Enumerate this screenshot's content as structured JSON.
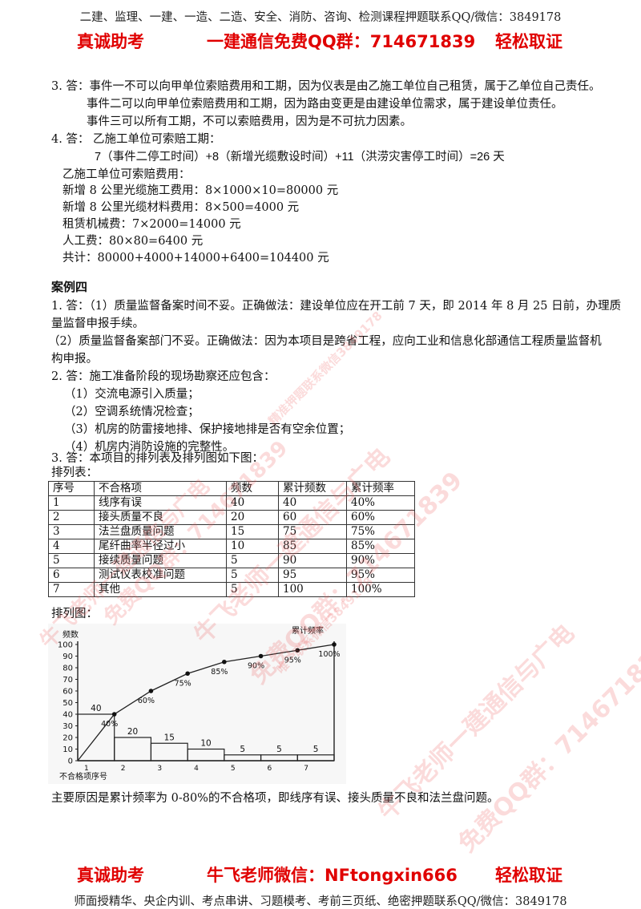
{
  "header": {
    "banner": "二建、监理、一建、一造、二造、安全、消防、咨询、检测课程押题联系QQ/微信：3849178",
    "left_slogan": "真诚助考",
    "center": "一建通信免费QQ群：714671839",
    "right_slogan": "轻松取证"
  },
  "section3": {
    "q3": "3. 答：事件一不可以向甲单位索赔费用和工期，因为仪表是由乙施工单位自己租赁，属于乙单位自己责任。",
    "q3_event2": "事件二可以向甲单位索赔费用和工期，因为路由变更是由建设单位需求，属于建设单位责任。",
    "q3_event3": "事件三可以所有工期，不可以索赔费用，因为是不可抗力因素。",
    "q4": "4. 答： 乙施工单位可索赔工期：",
    "q4_formula": "7（事件二停工时间）+8（新增光缆敷设时间）+11（洪涝灾害停工时间）=26 天",
    "q4_cost_title": "乙施工单位可索赔费用：",
    "q4_cost1": "新增 8 公里光缆施工费用：8×1000×10=80000 元",
    "q4_cost2": "新增 8 公里光缆材料费用：8×500=4000 元",
    "q4_cost3": "租赁机械费：7×2000=14000 元",
    "q4_cost4": "人工费：80×80=6400 元",
    "q4_total": "共计：80000+4000+14000+6400=104400 元"
  },
  "case4": {
    "title": "案例四",
    "a1_1": "1. 答：（1）质量监督备案时间不妥。正确做法：建设单位应在开工前 7 天，即 2014 年 8 月 25 日前，办理质",
    "a1_1b": "量监督申报手续。",
    "a1_2": "（2）质量监督备案部门不妥。正确做法：因为本项目是跨省工程，应向工业和信息化部通信工程质量监督机",
    "a1_2b": "构申报。",
    "a2": "2. 答：施工准备阶段的现场勘察还应包含：",
    "a2_items": [
      "（1）交流电源引入质量；",
      "（2）空调系统情况检查；",
      "（3）机房的防雷接地排、保护接地排是否有空余位置；",
      "（4）机房内消防设施的完整性。"
    ],
    "a3": "3. 答：本项目的排列表及排列图如下图：",
    "table_label": "排列表：",
    "chart_label": "排列图：",
    "conclusion": "主要原因是累计频率为 0-80%的不合格项，即线序有误、接头质量不良和法兰盘问题。"
  },
  "table": {
    "headers": [
      "序号",
      "不合格项",
      "频数",
      "累计频数",
      "累计频率"
    ],
    "rows": [
      [
        "1",
        "线序有误",
        "40",
        "40",
        "40%"
      ],
      [
        "2",
        "接头质量不良",
        "20",
        "60",
        "60%"
      ],
      [
        "3",
        "法兰盘质量问题",
        "15",
        "75",
        "75%"
      ],
      [
        "4",
        "尾纤曲率半径过小",
        "10",
        "85",
        "85%"
      ],
      [
        "5",
        "接续质量问题",
        "5",
        "90",
        "90%"
      ],
      [
        "6",
        "测试仪表校准问题",
        "5",
        "95",
        "95%"
      ],
      [
        "7",
        "其他",
        "5",
        "100",
        "100%"
      ]
    ]
  },
  "chart_data": {
    "type": "bar",
    "categories": [
      "1",
      "2",
      "3",
      "4",
      "5",
      "6",
      "7"
    ],
    "series": [
      {
        "name": "",
        "values": [
          40,
          20,
          15,
          10,
          5,
          5,
          5
        ]
      },
      {
        "name": "",
        "values": [
          40,
          60,
          75,
          85,
          90,
          95,
          100
        ]
      }
    ],
    "bar_labels": [
      "40",
      "20",
      "15",
      "10",
      "5",
      "5",
      "5"
    ],
    "line_labels": [
      "40%",
      "60%",
      "75%",
      "85%",
      "90%",
      "95%",
      "100%"
    ],
    "ylabel": "频数",
    "y2label": "累计频率",
    "xlabel": "不合格项序号",
    "yticks": [
      "0",
      "10",
      "20",
      "30",
      "40",
      "50",
      "60",
      "70",
      "80",
      "90",
      "100"
    ],
    "ylim": [
      0,
      100
    ],
    "grid": false
  },
  "footer": {
    "left_slogan": "真诚助考",
    "center": "牛飞老师微信：NFtongxin666",
    "right_slogan": "轻松取证",
    "banner": "师面授精华、央企内训、考点串讲、习题模考、考前三页纸、绝密押题联系QQ/微信：3849178"
  },
  "watermarks": {
    "w1": "牛飞老师一建通信与广电",
    "w2": "免费QQ群：714671839",
    "w3": "精准押题联系微信3849178",
    "w4": "唯一联系微信3849178"
  },
  "colors": {
    "slogan": "#e00000",
    "watermark": "rgba(235,90,90,0.22)"
  }
}
